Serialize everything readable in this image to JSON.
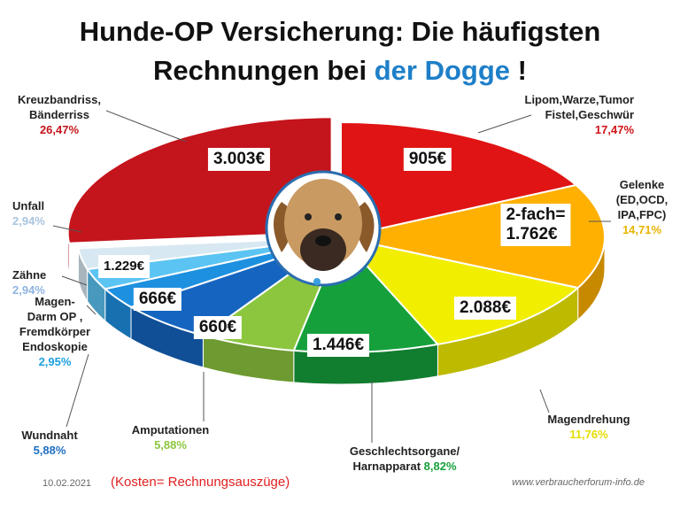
{
  "chart_data": {
    "type": "pie",
    "title": {
      "line1": "Hunde-OP Versicherung: Die häufigsten",
      "line2": "Rechnungen bei",
      "highlight": "der Dogge",
      "end": "!"
    },
    "categories": [
      "Lipom,Warze,Tumor\nFistel,Geschwür",
      "Gelenke\n(ED,OCD,\nIPA,FPC)",
      "Magendrehung",
      "Geschlechtsorgane/\nHarnapparat",
      "Amputationen",
      "Wundnaht",
      "Magen-\nDarm OP ,\nFremdkörper\nEndoskopie",
      "Zähne",
      "Unfall",
      "Kreuzbandriss,\nBänderriss"
    ],
    "values": [
      17.47,
      14.71,
      11.76,
      8.82,
      5.88,
      5.88,
      2.95,
      2.94,
      2.94,
      26.47
    ],
    "value_labels": [
      "17,47%",
      "14,71%",
      "11,76%",
      "8,82%",
      "5,88%",
      "5,88%",
      "2,95%",
      "2,94%",
      "2,94%",
      "26,47%"
    ],
    "amount_labels": [
      "905€",
      "2-fach=\n1.762€",
      "2.088€",
      "1.446€",
      "660€",
      "666€",
      "1.229€",
      null,
      null,
      "3.003€"
    ],
    "colors": [
      "#e01414",
      "#ffb000",
      "#f2ee00",
      "#16a03c",
      "#8cc63f",
      "#1565c0",
      "#1e90e0",
      "#5cc4f2",
      "#d8e8f2",
      "#c4141c"
    ],
    "label_colors": [
      "#d01418",
      "#e8b400",
      "#e6dc00",
      "#16a03c",
      "#8cc63f",
      "#1e6fc0",
      "#1e9fe0",
      "#8fb4e0",
      "#a9c4dc",
      "#c4141c"
    ],
    "explode": [
      false,
      false,
      false,
      false,
      false,
      false,
      false,
      false,
      false,
      true
    ],
    "date": "10.02.2021",
    "note": "(Kosten= Rechnungsauszüge)",
    "source": "www.verbraucherforum-info.de"
  }
}
